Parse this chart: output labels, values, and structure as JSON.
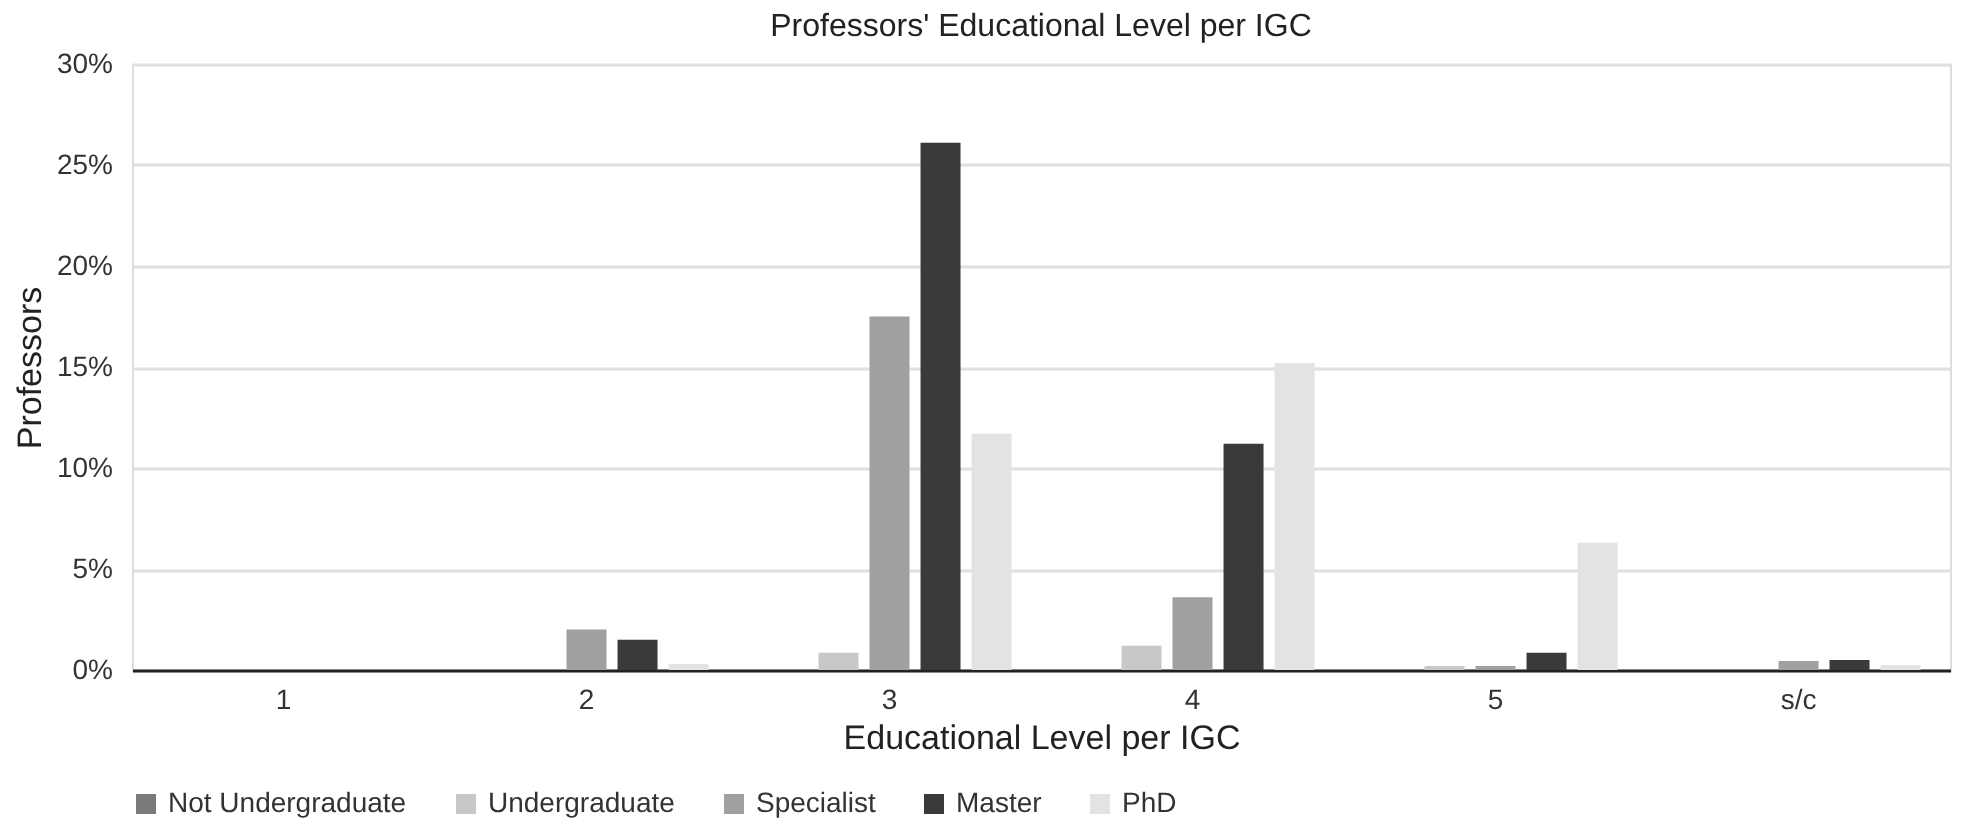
{
  "chart_data": {
    "type": "bar",
    "title": "Professors' Educational Level per IGC",
    "xlabel": "Educational Level per IGC",
    "ylabel": "Professors",
    "categories": [
      "1",
      "2",
      "3",
      "4",
      "5",
      "s/c"
    ],
    "series": [
      {
        "name": "Not Undergraduate",
        "color": "#7a7a7a",
        "values": [
          0,
          0,
          0,
          0,
          0,
          0
        ]
      },
      {
        "name": "Undergraduate",
        "color": "#c8c8c8",
        "values": [
          0,
          0,
          0.85,
          1.2,
          0.2,
          0
        ]
      },
      {
        "name": "Specialist",
        "color": "#a0a0a0",
        "values": [
          0,
          2.0,
          17.5,
          3.6,
          0.2,
          0.45
        ]
      },
      {
        "name": "Master",
        "color": "#3a3a3a",
        "values": [
          0,
          1.5,
          26.1,
          11.2,
          0.85,
          0.5
        ]
      },
      {
        "name": "PhD",
        "color": "#e2e3e3",
        "values": [
          0,
          0.3,
          11.7,
          15.2,
          6.3,
          0.25
        ]
      }
    ],
    "ylim": [
      0,
      30
    ],
    "yticks": [
      {
        "value": 0,
        "label": "0%"
      },
      {
        "value": 5,
        "label": "5%"
      },
      {
        "value": 10,
        "label": "10%"
      },
      {
        "value": 15,
        "label": "15%"
      },
      {
        "value": 20,
        "label": "20%"
      },
      {
        "value": 25,
        "label": "25%"
      },
      {
        "value": 30,
        "label": "30%"
      }
    ],
    "grid": "y",
    "legend": "bottom"
  }
}
